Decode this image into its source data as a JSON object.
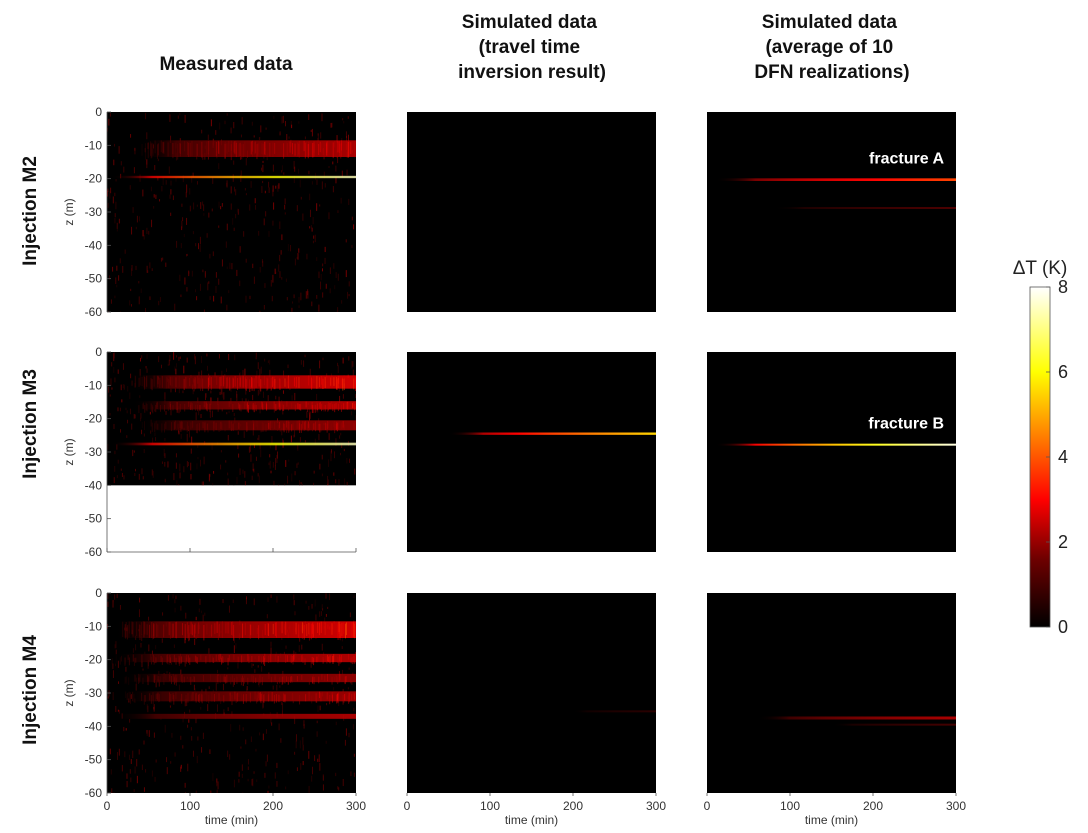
{
  "chart_data": {
    "type": "heatmap",
    "column_titles": [
      [
        "Measured data"
      ],
      [
        "Simulated data",
        "(travel time",
        "inversion result)"
      ],
      [
        "Simulated data",
        "(average of 10",
        "DFN realizations)"
      ]
    ],
    "row_titles": [
      "Injection M2",
      "Injection M3",
      "Injection M4"
    ],
    "xlabel": "time (min)",
    "ylabel": "z (m)",
    "xlim": [
      0,
      300
    ],
    "ylim": [
      -60,
      0
    ],
    "xticks": [
      0,
      100,
      200,
      300
    ],
    "yticks": [
      0,
      -10,
      -20,
      -30,
      -40,
      -50,
      -60
    ],
    "colorbar": {
      "label": "ΔT (K)",
      "range": [
        0,
        8
      ],
      "ticks": [
        0,
        2,
        4,
        6,
        8
      ],
      "colormap": "hot"
    },
    "panels": [
      {
        "row": 0,
        "col": 0,
        "kind": "measured",
        "data_bottom_z": -60,
        "bands": [
          {
            "z": -11,
            "width": 5,
            "peak": 2.4,
            "onset": 40
          },
          {
            "z": -19.5,
            "width": 0.7,
            "peak": 7.5,
            "onset": 5
          }
        ]
      },
      {
        "row": 0,
        "col": 1,
        "kind": "simulated",
        "bands": []
      },
      {
        "row": 0,
        "col": 2,
        "kind": "simulated",
        "annotation": "fracture A",
        "bands": [
          {
            "z": -20.3,
            "width": 0.8,
            "peak": 3.8,
            "onset": 10
          },
          {
            "z": -28.8,
            "width": 0.6,
            "peak": 0.9,
            "onset": 80
          }
        ]
      },
      {
        "row": 1,
        "col": 0,
        "kind": "measured",
        "data_bottom_z": -40,
        "bands": [
          {
            "z": -9,
            "width": 4,
            "peak": 3.0,
            "onset": 30
          },
          {
            "z": -16,
            "width": 2.5,
            "peak": 2.5,
            "onset": 30
          },
          {
            "z": -22,
            "width": 3,
            "peak": 2.0,
            "onset": 40
          },
          {
            "z": -27.6,
            "width": 0.8,
            "peak": 7.5,
            "onset": 5
          }
        ]
      },
      {
        "row": 1,
        "col": 1,
        "kind": "simulated",
        "bands": [
          {
            "z": -24.5,
            "width": 0.7,
            "peak": 5.5,
            "onset": 50
          }
        ]
      },
      {
        "row": 1,
        "col": 2,
        "kind": "simulated",
        "annotation": "fracture B",
        "bands": [
          {
            "z": -27.8,
            "width": 0.6,
            "peak": 7.8,
            "onset": 10
          }
        ]
      },
      {
        "row": 2,
        "col": 0,
        "kind": "measured",
        "data_bottom_z": -60,
        "bands": [
          {
            "z": -11,
            "width": 5,
            "peak": 3.0,
            "onset": 10
          },
          {
            "z": -19.5,
            "width": 2.5,
            "peak": 2.5,
            "onset": 10
          },
          {
            "z": -25.5,
            "width": 2.5,
            "peak": 2.0,
            "onset": 20
          },
          {
            "z": -31,
            "width": 3,
            "peak": 2.2,
            "onset": 20
          },
          {
            "z": -37,
            "width": 1.5,
            "peak": 2.4,
            "onset": 10
          }
        ]
      },
      {
        "row": 2,
        "col": 1,
        "kind": "simulated",
        "bands": [
          {
            "z": -35.5,
            "width": 0.6,
            "peak": 0.5,
            "onset": 200
          }
        ]
      },
      {
        "row": 2,
        "col": 2,
        "kind": "simulated",
        "bands": [
          {
            "z": -37.5,
            "width": 0.9,
            "peak": 2.0,
            "onset": 60
          },
          {
            "z": -39.5,
            "width": 0.6,
            "peak": 0.8,
            "onset": 150
          }
        ]
      }
    ]
  }
}
